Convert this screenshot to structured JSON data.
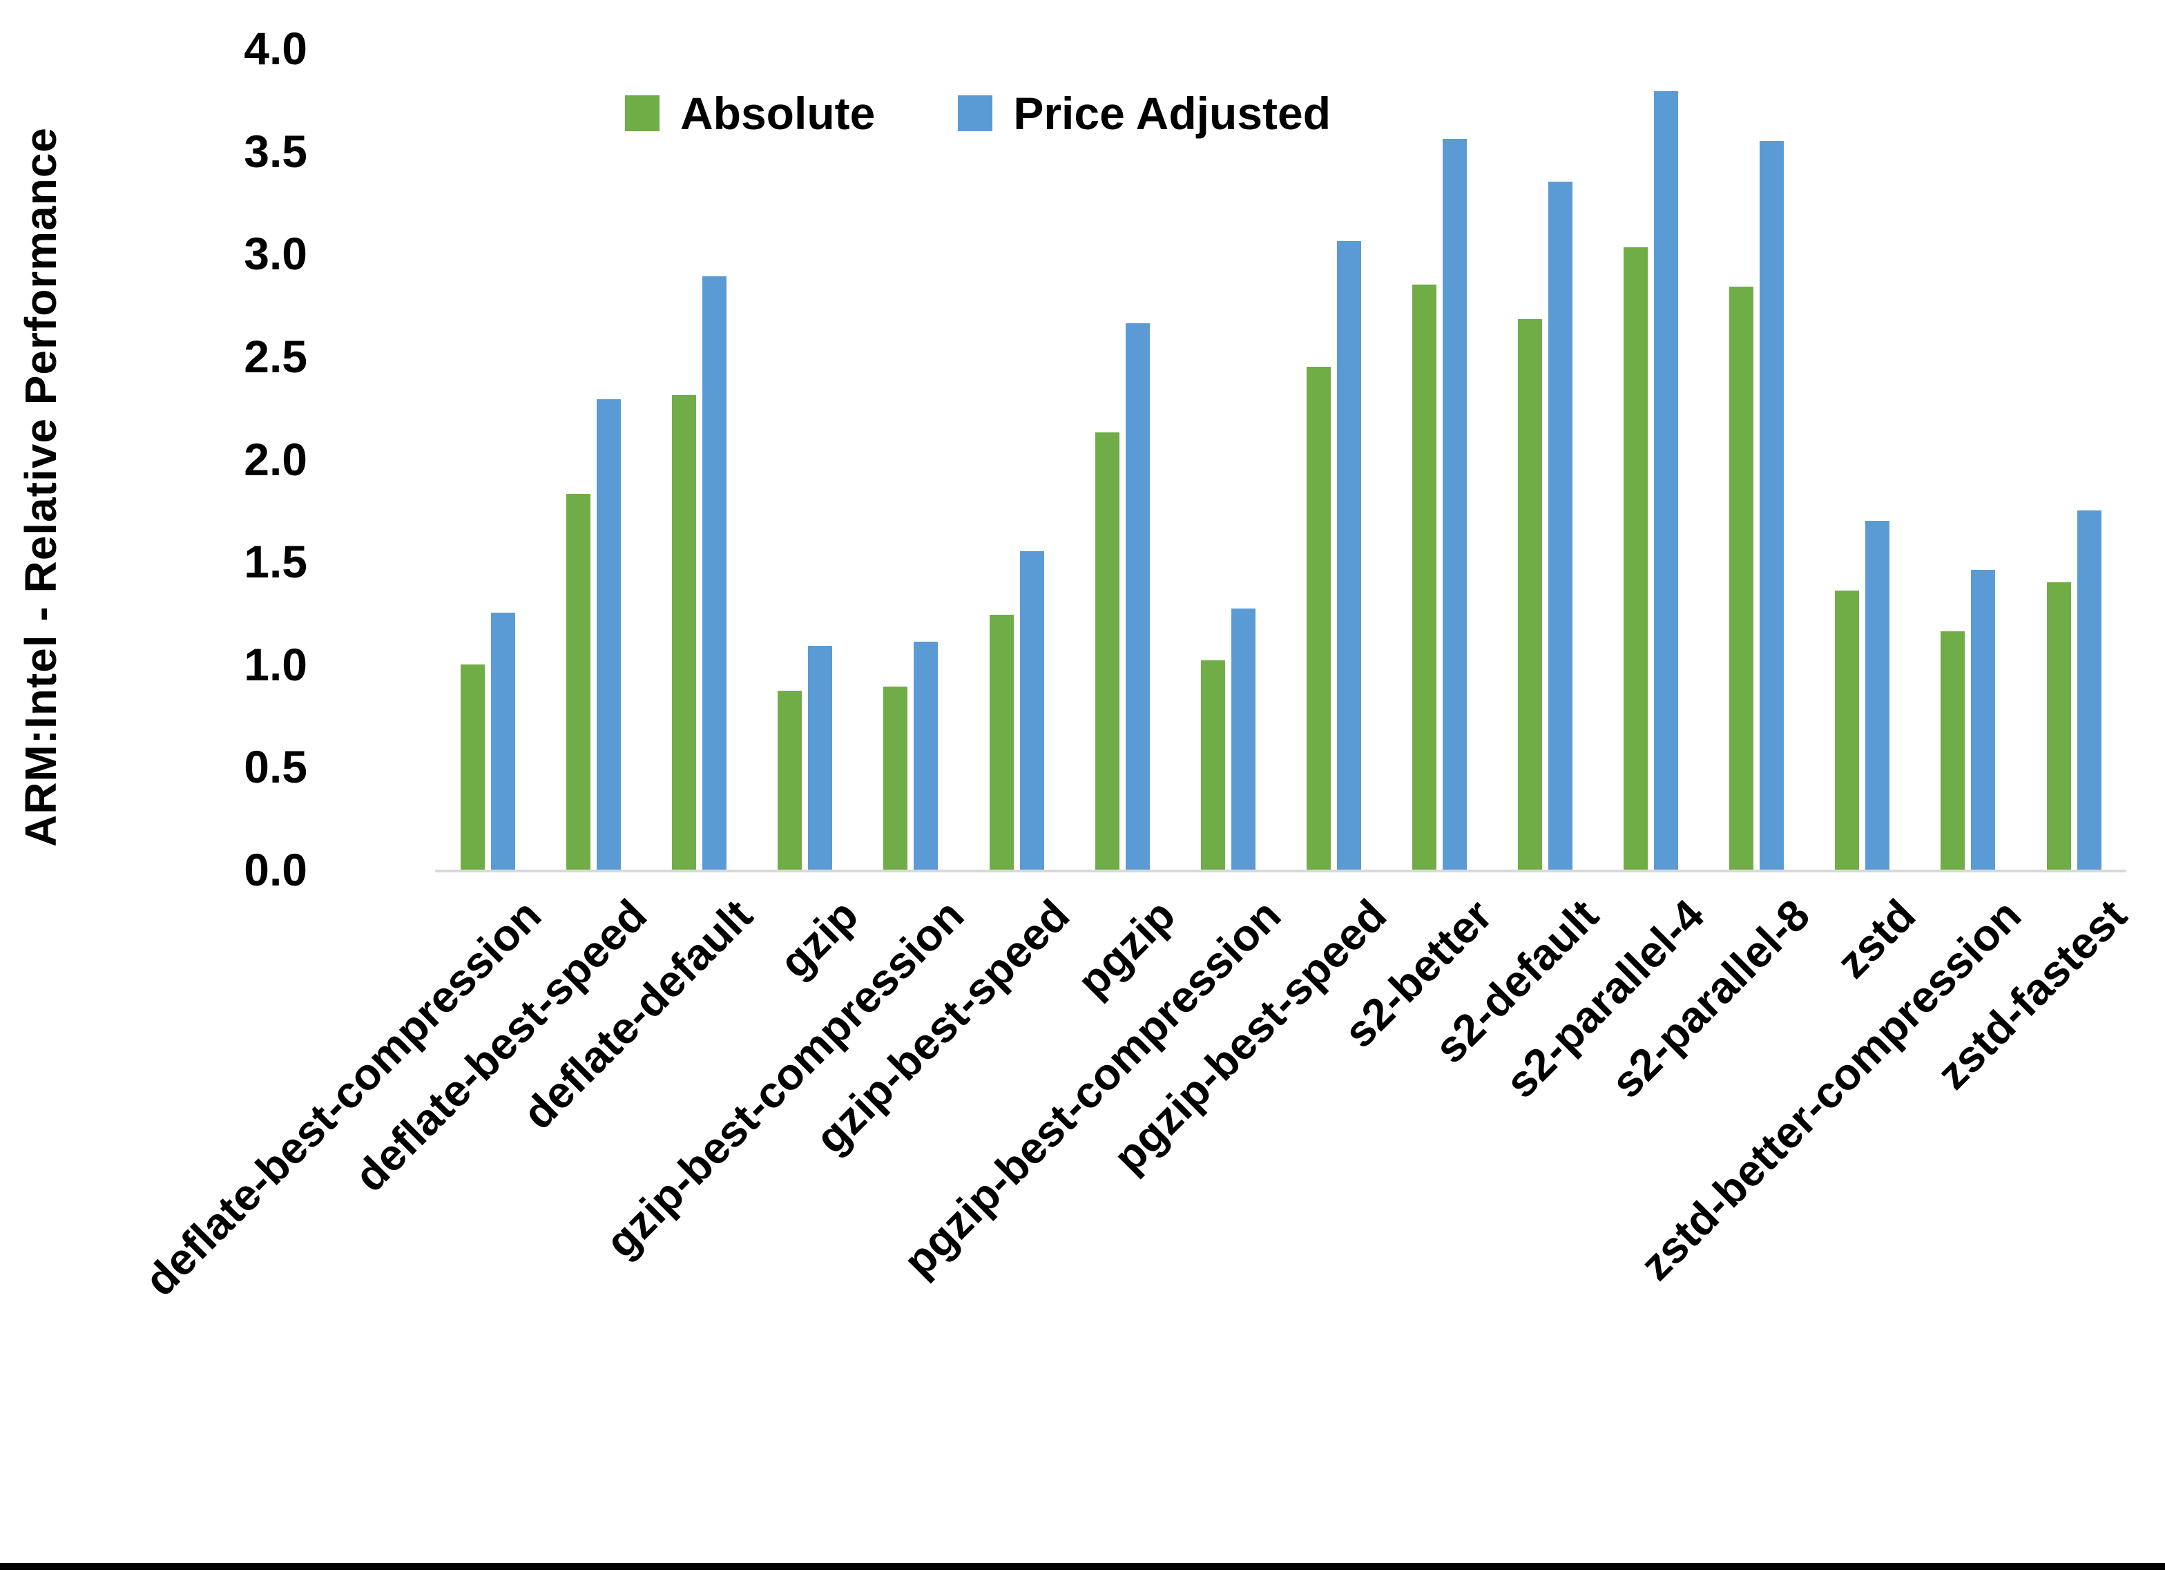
{
  "chart_data": {
    "type": "bar",
    "title": "",
    "ylabel": "ARM:Intel - Relative Performance",
    "xlabel": "",
    "ylim": [
      0.0,
      4.0
    ],
    "ytick_step": 0.5,
    "yticks": [
      "0.0",
      "0.5",
      "1.0",
      "1.5",
      "2.0",
      "2.5",
      "3.0",
      "3.5",
      "4.0"
    ],
    "grid": false,
    "legend_position": "top-center",
    "categories": [
      "deflate-best-compression",
      "deflate-best-speed",
      "deflate-default",
      "gzip",
      "gzip-best-compression",
      "gzip-best-speed",
      "pgzip",
      "pgzip-best-compression",
      "pgzip-best-speed",
      "s2-better",
      "s2-default",
      "s2-parallel-4",
      "s2-parallel-8",
      "zstd",
      "zstd-better-compression",
      "zstd-fastest"
    ],
    "series": [
      {
        "name": "Absolute",
        "color": "#70AD47",
        "values": [
          1.0,
          1.83,
          2.31,
          0.87,
          0.89,
          1.24,
          2.13,
          1.02,
          2.45,
          2.85,
          2.68,
          3.03,
          2.84,
          1.36,
          1.16,
          1.4
        ]
      },
      {
        "name": "Price Adjusted",
        "color": "#5B9BD5",
        "values": [
          1.25,
          2.29,
          2.89,
          1.09,
          1.11,
          1.55,
          2.66,
          1.27,
          3.06,
          3.56,
          3.35,
          3.79,
          3.55,
          1.7,
          1.46,
          1.75
        ]
      }
    ]
  },
  "colors": {
    "axis_line": "#D9D9D9",
    "text": "#000000",
    "bottom_bar": "#000000",
    "background": "#FFFFFF"
  }
}
